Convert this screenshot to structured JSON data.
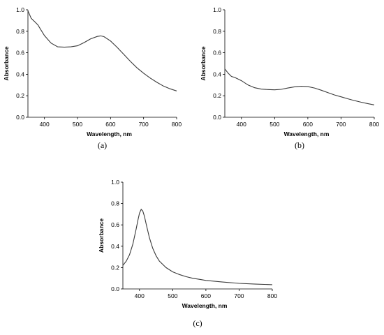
{
  "chart_data": [
    {
      "type": "line",
      "panel_label": "(a)",
      "xlabel": "Wavelength, nm",
      "ylabel": "Absorbance",
      "xlim": [
        350,
        800
      ],
      "ylim": [
        0,
        1.0
      ],
      "xticks": [
        400,
        500,
        600,
        700,
        800
      ],
      "yticks": [
        0.0,
        0.2,
        0.4,
        0.6,
        0.8,
        1.0
      ],
      "grid": false,
      "series": [
        {
          "x": [
            350,
            360,
            370,
            380,
            390,
            400,
            420,
            440,
            460,
            480,
            500,
            520,
            540,
            560,
            570,
            580,
            600,
            620,
            640,
            660,
            680,
            700,
            720,
            740,
            760,
            780,
            800
          ],
          "values": [
            0.99,
            0.92,
            0.89,
            0.86,
            0.81,
            0.76,
            0.69,
            0.655,
            0.652,
            0.655,
            0.665,
            0.695,
            0.73,
            0.752,
            0.757,
            0.75,
            0.71,
            0.65,
            0.585,
            0.52,
            0.46,
            0.41,
            0.365,
            0.325,
            0.29,
            0.265,
            0.245
          ]
        }
      ]
    },
    {
      "type": "line",
      "panel_label": "(b)",
      "xlabel": "Wavelength, nm",
      "ylabel": "Absorbance",
      "xlim": [
        350,
        800
      ],
      "ylim": [
        0,
        1.0
      ],
      "xticks": [
        400,
        500,
        600,
        700,
        800
      ],
      "yticks": [
        0.0,
        0.2,
        0.4,
        0.6,
        0.8,
        1.0
      ],
      "grid": false,
      "series": [
        {
          "x": [
            350,
            360,
            370,
            380,
            390,
            400,
            420,
            440,
            460,
            480,
            500,
            520,
            540,
            560,
            580,
            600,
            620,
            640,
            660,
            680,
            700,
            720,
            740,
            760,
            780,
            800
          ],
          "values": [
            0.45,
            0.41,
            0.38,
            0.37,
            0.355,
            0.34,
            0.3,
            0.275,
            0.262,
            0.258,
            0.255,
            0.26,
            0.272,
            0.283,
            0.288,
            0.285,
            0.272,
            0.252,
            0.23,
            0.208,
            0.19,
            0.172,
            0.155,
            0.14,
            0.127,
            0.115
          ]
        }
      ]
    },
    {
      "type": "line",
      "panel_label": "(c)",
      "xlabel": "Wavelength, nm",
      "ylabel": "Absorbance",
      "xlim": [
        350,
        800
      ],
      "ylim": [
        0,
        1.0
      ],
      "xticks": [
        400,
        500,
        600,
        700,
        800
      ],
      "yticks": [
        0.0,
        0.2,
        0.4,
        0.6,
        0.8,
        1.0
      ],
      "grid": false,
      "series": [
        {
          "x": [
            350,
            360,
            370,
            380,
            390,
            395,
            400,
            405,
            410,
            415,
            420,
            430,
            440,
            450,
            460,
            480,
            500,
            520,
            540,
            560,
            580,
            600,
            650,
            700,
            750,
            800
          ],
          "values": [
            0.22,
            0.26,
            0.32,
            0.42,
            0.56,
            0.64,
            0.71,
            0.745,
            0.73,
            0.68,
            0.61,
            0.48,
            0.38,
            0.31,
            0.26,
            0.2,
            0.16,
            0.135,
            0.115,
            0.1,
            0.09,
            0.08,
            0.065,
            0.052,
            0.045,
            0.04
          ]
        }
      ]
    }
  ]
}
